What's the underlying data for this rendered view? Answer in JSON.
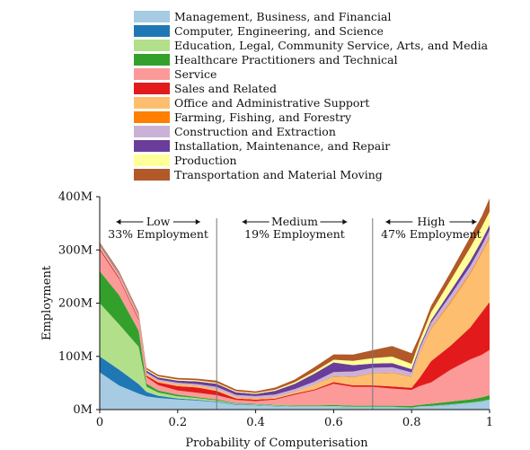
{
  "chart_data": {
    "type": "area",
    "xlabel": "Probability of Computerisation",
    "ylabel": "Employment",
    "xlim": [
      0,
      1
    ],
    "ylim": [
      0,
      400
    ],
    "x_ticks": [
      0,
      0.2,
      0.4,
      0.6,
      0.8,
      1
    ],
    "x_tick_labels": [
      "0",
      "0.2",
      "0.4",
      "0.6",
      "0.8",
      "1"
    ],
    "y_ticks": [
      0,
      100,
      200,
      300,
      400
    ],
    "y_tick_labels": [
      "0M",
      "100M",
      "200M",
      "300M",
      "400M"
    ],
    "legend_position": "top",
    "thresholds": [
      0.3,
      0.7
    ],
    "regions": [
      {
        "label": "Low",
        "share": "33% Employment",
        "x_from": 0,
        "x_to": 0.3
      },
      {
        "label": "Medium",
        "share": "19% Employment",
        "x_from": 0.3,
        "x_to": 0.7
      },
      {
        "label": "High",
        "share": "47% Employment",
        "x_from": 0.7,
        "x_to": 1
      }
    ],
    "x": [
      0,
      0.05,
      0.1,
      0.12,
      0.15,
      0.2,
      0.25,
      0.3,
      0.35,
      0.4,
      0.45,
      0.5,
      0.55,
      0.6,
      0.65,
      0.7,
      0.75,
      0.8,
      0.82,
      0.85,
      0.9,
      0.95,
      0.98,
      1
    ],
    "series": [
      {
        "name": "Management, Business, and Financial",
        "color": "#a6cbe3",
        "values": [
          70,
          45,
          30,
          25,
          22,
          19,
          17,
          14,
          9,
          8,
          6,
          5,
          5,
          5,
          4,
          4,
          4,
          3,
          5,
          6,
          9,
          12,
          15,
          18
        ]
      },
      {
        "name": "Computer, Engineering, and Science",
        "color": "#1f78b4",
        "values": [
          30,
          30,
          18,
          8,
          4,
          2,
          1.5,
          1,
          1,
          0.8,
          0.8,
          0.8,
          0.8,
          0.6,
          0.5,
          0.5,
          0.5,
          0.4,
          0.5,
          0.5,
          0.5,
          0.5,
          0.5,
          0.5
        ]
      },
      {
        "name": "Education, Legal, Community Service, Arts, and Media",
        "color": "#b2df8a",
        "values": [
          100,
          85,
          70,
          10,
          6,
          4,
          3,
          2,
          1,
          1,
          1,
          1,
          1,
          1,
          1,
          1,
          1,
          0.5,
          0.5,
          0.5,
          0.5,
          0.5,
          0.5,
          0.5
        ]
      },
      {
        "name": "Healthcare Practitioners and Technical",
        "color": "#33a02c",
        "values": [
          60,
          55,
          30,
          6,
          4,
          3,
          2,
          2,
          1,
          1,
          1,
          1,
          1,
          2,
          2,
          2,
          2,
          3,
          3,
          4,
          5,
          6,
          7,
          8
        ]
      },
      {
        "name": "Service",
        "color": "#fb9a99",
        "values": [
          40,
          30,
          20,
          12,
          10,
          8,
          8,
          8,
          6,
          5,
          10,
          20,
          28,
          40,
          35,
          35,
          32,
          30,
          35,
          40,
          60,
          75,
          80,
          85
        ]
      },
      {
        "name": "Sales and Related",
        "color": "#e31a1c",
        "values": [
          3,
          3,
          3,
          3,
          5,
          8,
          10,
          8,
          3,
          3,
          2,
          2,
          2,
          3,
          3,
          3,
          4,
          4,
          15,
          40,
          45,
          60,
          80,
          90
        ]
      },
      {
        "name": "Office and Administrative Support",
        "color": "#fdbf6f",
        "values": [
          2,
          2,
          2,
          2,
          2,
          3,
          3,
          3,
          2,
          2,
          2,
          3,
          8,
          10,
          15,
          22,
          25,
          20,
          45,
          60,
          80,
          100,
          110,
          120
        ]
      },
      {
        "name": "Farming, Fishing, and Forestry",
        "color": "#ff7f00",
        "values": [
          0.5,
          0.5,
          0.5,
          0.5,
          0.5,
          0.5,
          0.5,
          0.5,
          0.5,
          0.5,
          0.5,
          0.5,
          0.5,
          1,
          1,
          1,
          1,
          1,
          2,
          2,
          3,
          3,
          3,
          3
        ]
      },
      {
        "name": "Construction and Extraction",
        "color": "#cab2d6",
        "values": [
          3,
          3,
          3,
          3,
          3,
          3,
          3,
          4,
          4,
          4,
          5,
          5,
          6,
          8,
          10,
          10,
          10,
          8,
          8,
          10,
          12,
          12,
          12,
          12
        ]
      },
      {
        "name": "Installation, Maintenance, and Repair",
        "color": "#6a3d9a",
        "values": [
          2,
          2,
          2,
          4,
          4,
          4,
          5,
          6,
          5,
          4,
          7,
          10,
          15,
          18,
          12,
          8,
          8,
          6,
          4,
          5,
          8,
          10,
          10,
          10
        ]
      },
      {
        "name": "Production",
        "color": "#ffff99",
        "values": [
          1,
          1,
          1,
          2,
          2,
          2,
          2,
          2,
          2,
          2,
          2,
          3,
          4,
          5,
          8,
          10,
          12,
          10,
          10,
          15,
          20,
          25,
          25,
          25
        ]
      },
      {
        "name": "Transportation and Material Moving",
        "color": "#b15928",
        "values": [
          3,
          3,
          3,
          3,
          3,
          3,
          3,
          4,
          3,
          3,
          4,
          5,
          8,
          10,
          12,
          15,
          20,
          20,
          10,
          12,
          15,
          20,
          20,
          25
        ]
      }
    ]
  }
}
